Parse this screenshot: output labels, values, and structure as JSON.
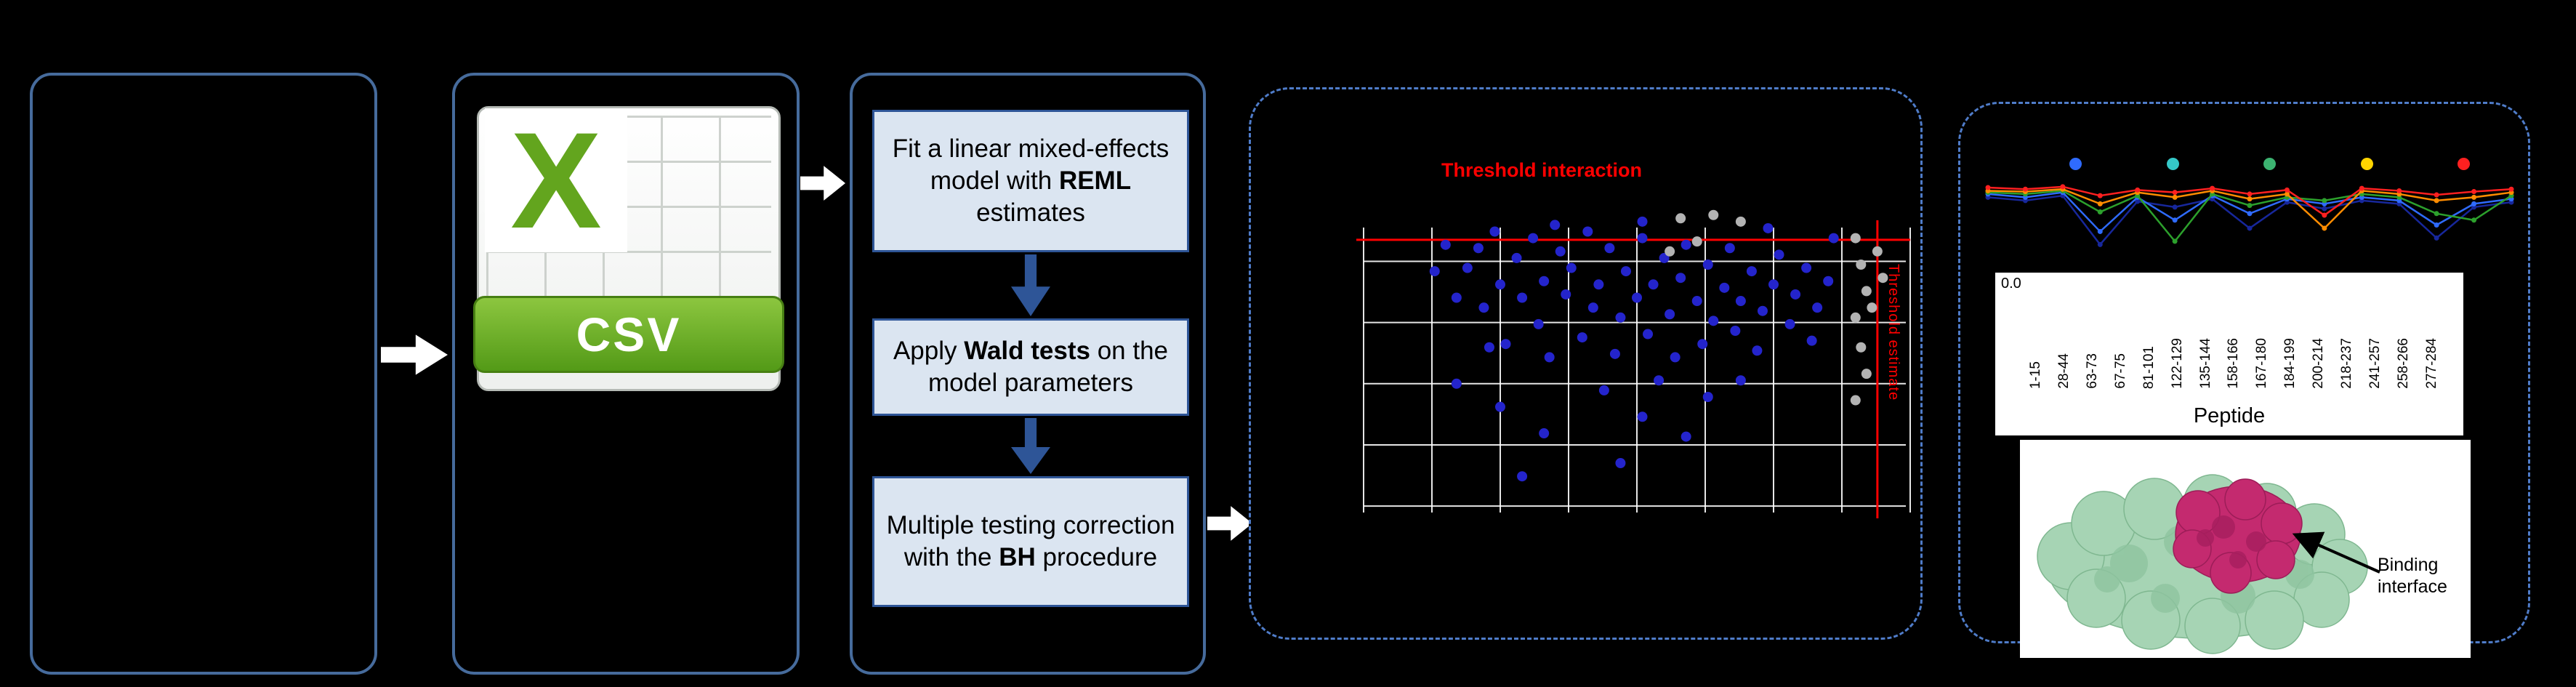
{
  "colors": {
    "background": "#000000",
    "panel_border_solid": "#466b9c",
    "panel_border_dashed": "#4f7cc9",
    "flow_box_fill": "#dbe5f1",
    "flow_box_border": "#2e5597",
    "flow_arrow_blue": "#2e5597",
    "white_arrow": "#ffffff",
    "threshold_red": "#ff0000",
    "scatter_blue": "#2424cc",
    "scatter_grey": "#b3b3b3",
    "csv_green": "#63a51e",
    "protein_green": "#a6d4b4",
    "protein_magenta": "#c42a6f"
  },
  "csv": {
    "logo_letter": "X",
    "banner_label": "CSV"
  },
  "flowchart": {
    "steps": [
      {
        "name": "fit-model",
        "segments": [
          {
            "text": "Fit a linear mixed-effects model with "
          },
          {
            "text": "REML",
            "bold": true
          },
          {
            "text": " estimates"
          }
        ]
      },
      {
        "name": "wald-tests",
        "segments": [
          {
            "text": "Apply "
          },
          {
            "text": "Wald tests",
            "bold": true
          },
          {
            "text": " on the model parameters"
          }
        ]
      },
      {
        "name": "bh-correction",
        "segments": [
          {
            "text": "Multiple testing correction with the "
          },
          {
            "text": "BH",
            "bold": true
          },
          {
            "text": " procedure"
          }
        ]
      }
    ]
  },
  "chart_data": [
    {
      "type": "scatter",
      "title": "",
      "grid": {
        "v_lines": 9,
        "h_lines_y_pct": [
          19,
          37.5,
          56,
          74.5,
          93
        ],
        "grid_color": "#ffffff"
      },
      "threshold_lines": {
        "horizontal_label": "Threshold interaction",
        "vertical_label": "Threshold estimate",
        "h_y_pct": 12.5,
        "v_x_pct": 94
      },
      "series": [
        {
          "name": "interaction-candidates",
          "color": "#2424cc",
          "points": [
            [
              13,
              22
            ],
            [
              15,
              14
            ],
            [
              17,
              30
            ],
            [
              19,
              21
            ],
            [
              21,
              15
            ],
            [
              22,
              33
            ],
            [
              24,
              10
            ],
            [
              25,
              26
            ],
            [
              26,
              44
            ],
            [
              28,
              18
            ],
            [
              29,
              30
            ],
            [
              31,
              12
            ],
            [
              32,
              38
            ],
            [
              33,
              25
            ],
            [
              34,
              48
            ],
            [
              36,
              16
            ],
            [
              37,
              29
            ],
            [
              38,
              21
            ],
            [
              40,
              42
            ],
            [
              41,
              10
            ],
            [
              42,
              33
            ],
            [
              43,
              26
            ],
            [
              45,
              15
            ],
            [
              46,
              47
            ],
            [
              47,
              36
            ],
            [
              48,
              22
            ],
            [
              50,
              30
            ],
            [
              51,
              12
            ],
            [
              52,
              41
            ],
            [
              53,
              26
            ],
            [
              55,
              18
            ],
            [
              56,
              35
            ],
            [
              57,
              48
            ],
            [
              58,
              24
            ],
            [
              59,
              14
            ],
            [
              61,
              31
            ],
            [
              62,
              44
            ],
            [
              63,
              20
            ],
            [
              64,
              37
            ],
            [
              66,
              27
            ],
            [
              67,
              15
            ],
            [
              68,
              40
            ],
            [
              69,
              31
            ],
            [
              71,
              22
            ],
            [
              72,
              46
            ],
            [
              73,
              34
            ],
            [
              75,
              26
            ],
            [
              76,
              17
            ],
            [
              78,
              38
            ],
            [
              79,
              29
            ],
            [
              81,
              21
            ],
            [
              82,
              43
            ],
            [
              83,
              33
            ],
            [
              85,
              25
            ],
            [
              17,
              56
            ],
            [
              25,
              63
            ],
            [
              33,
              71
            ],
            [
              44,
              58
            ],
            [
              51,
              66
            ],
            [
              59,
              72
            ],
            [
              29,
              84
            ],
            [
              47,
              80
            ],
            [
              63,
              60
            ],
            [
              69,
              55
            ],
            [
              23,
              45
            ],
            [
              54,
              55
            ],
            [
              35,
              8
            ],
            [
              51,
              7
            ],
            [
              74,
              9
            ],
            [
              86,
              12
            ]
          ]
        },
        {
          "name": "non-significant",
          "color": "#b3b3b3",
          "points": [
            [
              90,
              12
            ],
            [
              91,
              20
            ],
            [
              92,
              28
            ],
            [
              90,
              36
            ],
            [
              91,
              45
            ],
            [
              92,
              53
            ],
            [
              90,
              61
            ],
            [
              94,
              16
            ],
            [
              95,
              24
            ],
            [
              93,
              33
            ],
            [
              58,
              6
            ],
            [
              64,
              5
            ],
            [
              69,
              7
            ],
            [
              56,
              16
            ],
            [
              61,
              13
            ]
          ]
        }
      ]
    },
    {
      "type": "line",
      "x_label": "Peptide",
      "y_tick": "0.0",
      "x_categories": [
        "1-15",
        "28-44",
        "63-73",
        "67-75",
        "81-101",
        "122-129",
        "135-144",
        "158-166",
        "167-180",
        "184-199",
        "200-214",
        "218-237",
        "241-257",
        "258-266",
        "277-284"
      ],
      "legend_marker_colors": [
        "#2f6bff",
        "#35c8c8",
        "#3cb371",
        "#ffd400",
        "#ff2020"
      ],
      "series": [
        {
          "name": "series-navy",
          "color": "#17279b",
          "values": [
            0.8,
            0.76,
            0.82,
            0.22,
            0.75,
            0.68,
            0.78,
            0.42,
            0.74,
            0.66,
            0.76,
            0.72,
            0.3,
            0.68,
            0.74
          ]
        },
        {
          "name": "series-blue",
          "color": "#2f6bff",
          "values": [
            0.84,
            0.8,
            0.86,
            0.38,
            0.8,
            0.52,
            0.82,
            0.6,
            0.78,
            0.72,
            0.8,
            0.76,
            0.46,
            0.72,
            0.78
          ]
        },
        {
          "name": "series-green",
          "color": "#2ca02c",
          "values": [
            0.86,
            0.84,
            0.88,
            0.62,
            0.82,
            0.26,
            0.84,
            0.7,
            0.8,
            0.76,
            0.84,
            0.8,
            0.6,
            0.52,
            0.82
          ]
        },
        {
          "name": "series-orange",
          "color": "#ff8c00",
          "values": [
            0.88,
            0.87,
            0.9,
            0.72,
            0.86,
            0.8,
            0.88,
            0.78,
            0.84,
            0.42,
            0.88,
            0.84,
            0.76,
            0.8,
            0.86
          ]
        },
        {
          "name": "series-red",
          "color": "#ff2020",
          "values": [
            0.92,
            0.9,
            0.93,
            0.82,
            0.89,
            0.86,
            0.91,
            0.84,
            0.89,
            0.58,
            0.91,
            0.88,
            0.83,
            0.87,
            0.9
          ]
        }
      ]
    }
  ],
  "protein": {
    "binding_label": "Binding interface"
  }
}
